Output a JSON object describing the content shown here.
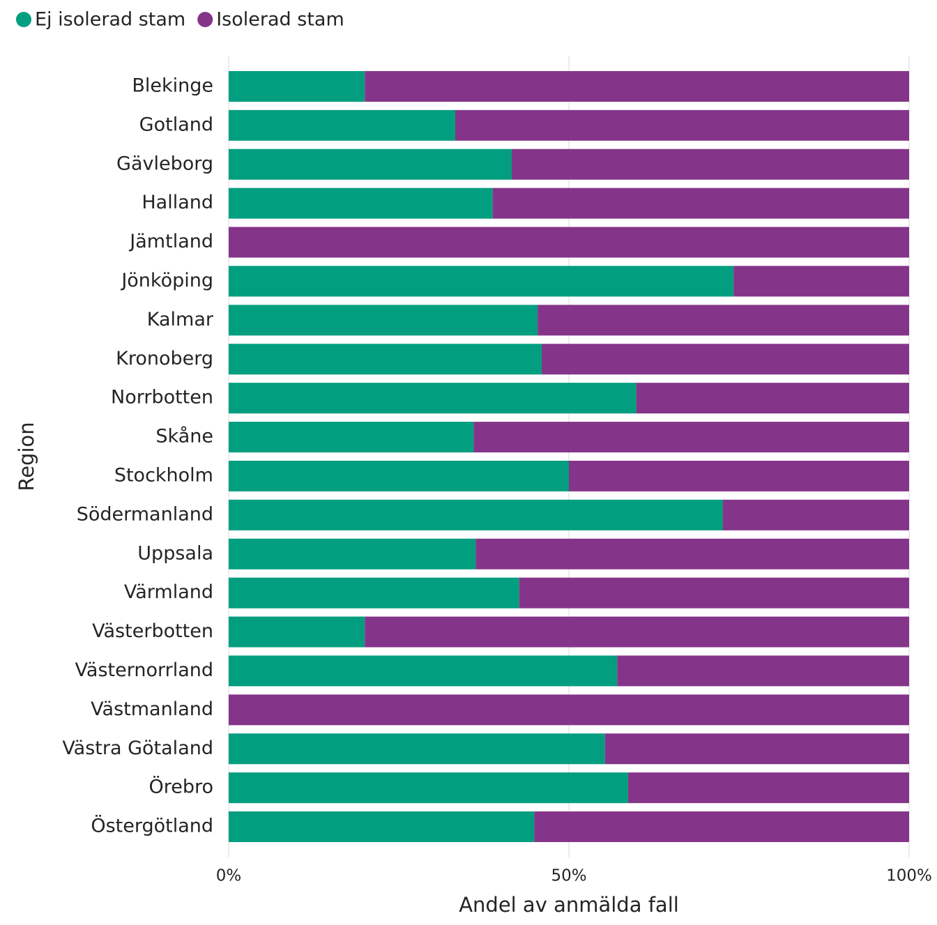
{
  "chart_data": {
    "type": "stacked-bar-horizontal",
    "x_label": "Andel av anmälda fall",
    "y_label": "Region",
    "categories": [
      "Blekinge",
      "Gotland",
      "Gävleborg",
      "Halland",
      "Jämtland",
      "Jönköping",
      "Kalmar",
      "Kronoberg",
      "Norrbotten",
      "Skåne",
      "Stockholm",
      "Södermanland",
      "Uppsala",
      "Värmland",
      "Västerbotten",
      "Västernorrland",
      "Västmanland",
      "Västra Götaland",
      "Örebro",
      "Östergötland"
    ],
    "series": [
      {
        "name": "Ej isolerad stam",
        "color": "#019e7f",
        "values": [
          20,
          33.3,
          41.6,
          38.8,
          0,
          74.2,
          45.4,
          46,
          59.9,
          36,
          50,
          72.6,
          36.3,
          42.7,
          20,
          57.1,
          0,
          55.3,
          58.7,
          44.9
        ]
      },
      {
        "name": "Isolerad stam",
        "color": "#853589",
        "values": [
          80,
          66.7,
          58.4,
          61.2,
          100,
          25.8,
          54.6,
          54,
          40.1,
          64,
          50,
          27.4,
          63.7,
          57.3,
          80,
          42.9,
          100,
          44.7,
          41.3,
          55.1
        ]
      }
    ],
    "xlim": [
      0,
      100
    ],
    "xticks": [
      {
        "value": 0,
        "label": "0%"
      },
      {
        "value": 50,
        "label": "50%"
      },
      {
        "value": 100,
        "label": "100%"
      }
    ],
    "grid": true,
    "legend": "top-left"
  }
}
